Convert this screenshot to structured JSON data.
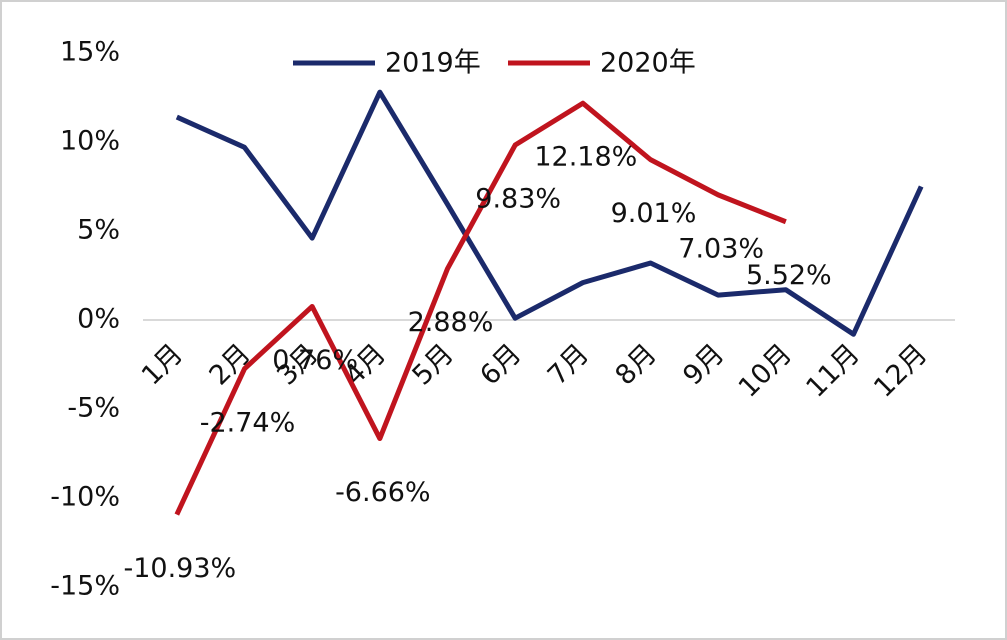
{
  "chart_data": {
    "type": "line",
    "categories": [
      "1月",
      "2月",
      "3月",
      "4月",
      "5月",
      "6月",
      "7月",
      "8月",
      "9月",
      "10月",
      "11月",
      "12月"
    ],
    "series": [
      {
        "name": "2019年",
        "color": "#1b2a6b",
        "values": [
          11.4,
          9.7,
          4.6,
          12.8,
          6.5,
          0.1,
          2.1,
          3.2,
          1.4,
          1.7,
          -0.8,
          7.5
        ]
      },
      {
        "name": "2020年",
        "color": "#c0141e",
        "values": [
          -10.93,
          -2.74,
          0.76,
          -6.66,
          2.88,
          9.83,
          12.18,
          9.01,
          7.03,
          5.52,
          null,
          null
        ],
        "value_labels": [
          "-10.93%",
          "-2.74%",
          "0.76%",
          "-6.66%",
          "2.88%",
          "9.83%",
          "12.18%",
          "9.01%",
          "7.03%",
          "5.52%",
          null,
          null
        ]
      }
    ],
    "ylim": [
      -15,
      15
    ],
    "yticks": [
      {
        "value": -15,
        "label": "-15%"
      },
      {
        "value": -10,
        "label": "-10%"
      },
      {
        "value": -5,
        "label": "-5%"
      },
      {
        "value": 0,
        "label": "0%"
      },
      {
        "value": 5,
        "label": "5%"
      },
      {
        "value": 10,
        "label": "10%"
      },
      {
        "value": 15,
        "label": "15%"
      }
    ],
    "legend": "top"
  }
}
